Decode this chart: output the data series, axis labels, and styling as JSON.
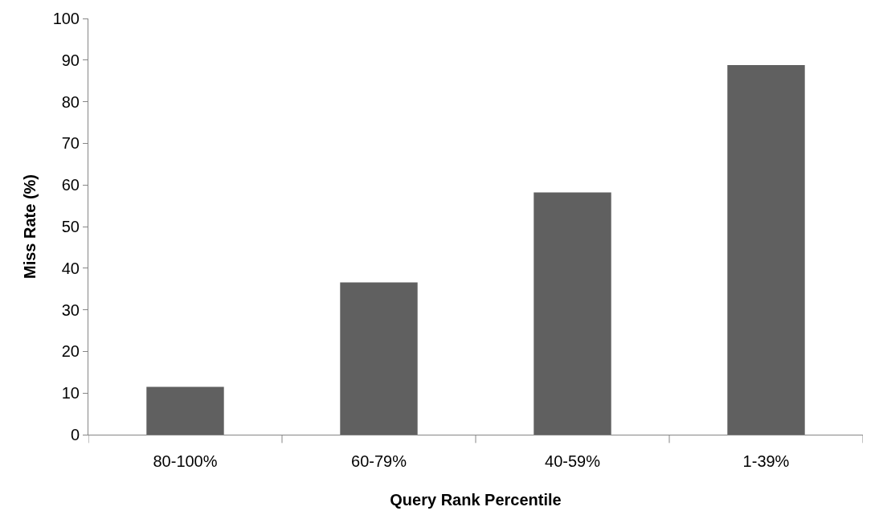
{
  "chart_data": {
    "type": "bar",
    "xlabel": "Query Rank Percentile",
    "ylabel": "Miss Rate (%)",
    "categories": [
      "80-100%",
      "60-79%",
      "40-59%",
      "1-39%"
    ],
    "values": [
      11.5,
      36.6,
      58.2,
      88.8
    ],
    "color": "#606060",
    "ylim": [
      0,
      100
    ],
    "yticks": [
      0,
      10,
      20,
      30,
      40,
      50,
      60,
      70,
      80,
      90,
      100
    ]
  }
}
